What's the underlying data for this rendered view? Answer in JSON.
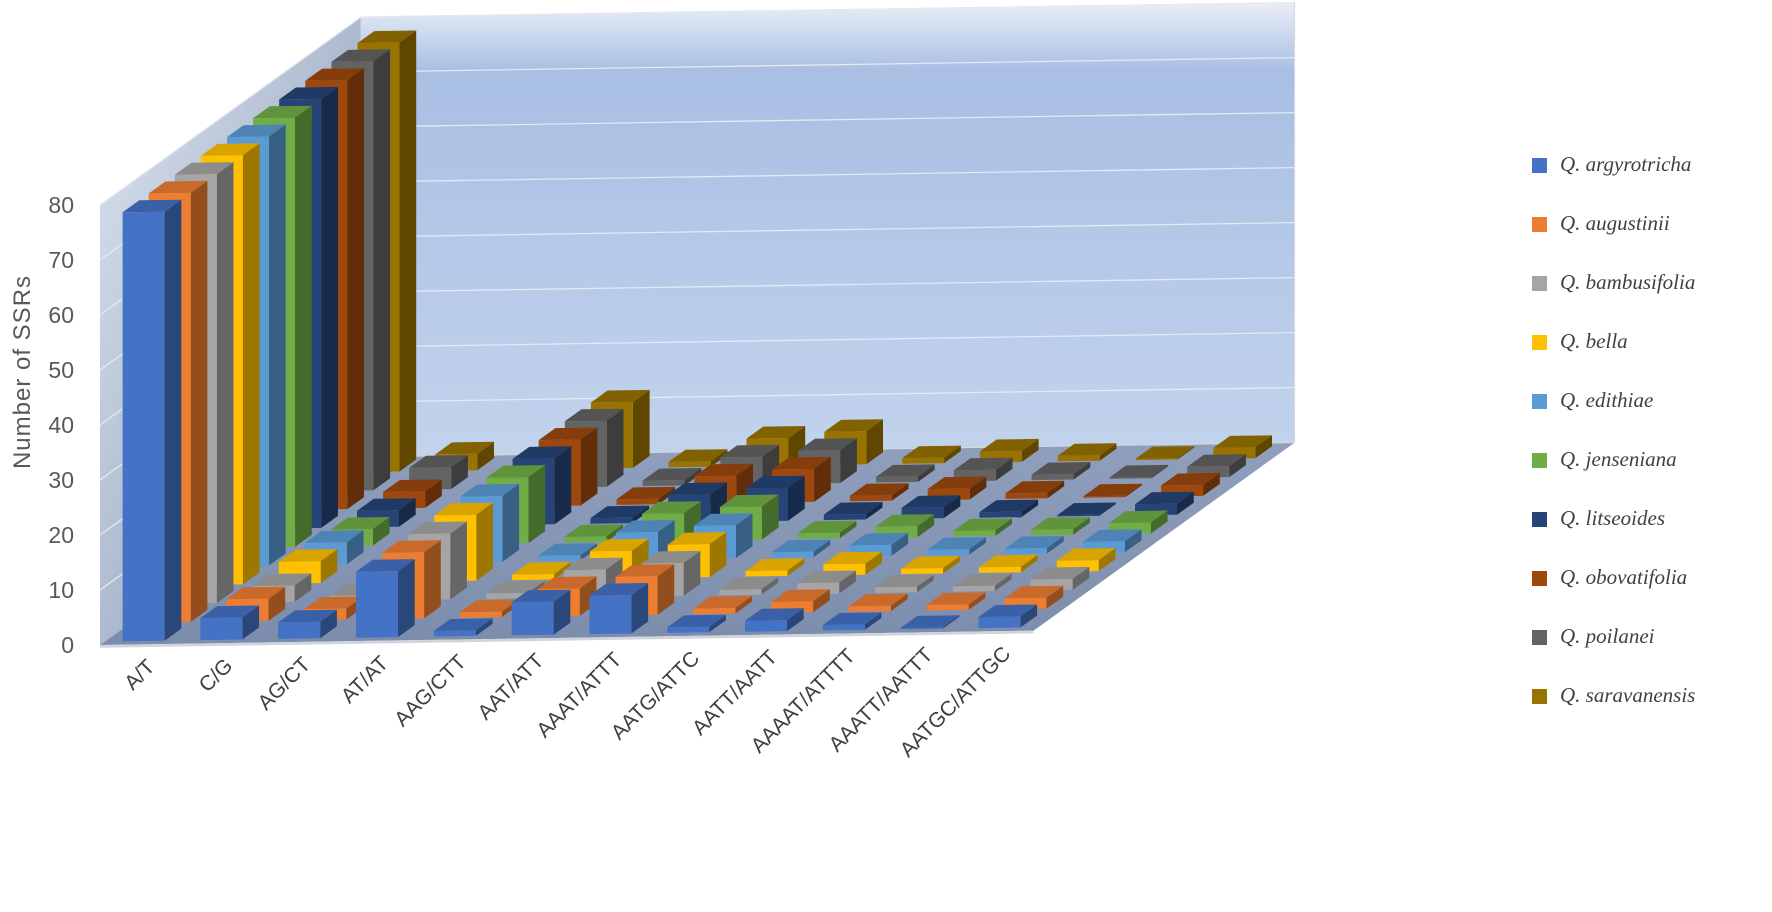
{
  "chart_data": {
    "type": "bar",
    "chart_style": "3d-clustered-column",
    "ylabel": "Number of SSRs",
    "ylim": [
      0,
      80
    ],
    "yticks": [
      0,
      10,
      20,
      30,
      40,
      50,
      60,
      70,
      80
    ],
    "grid": true,
    "legend_position": "right",
    "categories": [
      "A/T",
      "C/G",
      "AG/CT",
      "AT/AT",
      "AAG/CTT",
      "AAT/ATT",
      "AAAT/ATTT",
      "AATG/ATTC",
      "AATT/AATT",
      "AAAAT/ATTTT",
      "AAATT/AATTT",
      "AATGC/ATTGC"
    ],
    "series": [
      {
        "name": "Q. argyrotricha",
        "color": "#4472C4",
        "values": [
          78,
          4,
          3,
          12,
          1,
          6,
          7,
          1,
          2,
          1,
          0,
          2
        ]
      },
      {
        "name": "Q. augustinii",
        "color": "#ED7D31",
        "values": [
          78,
          4,
          2,
          12,
          1,
          5,
          7,
          1,
          2,
          1,
          1,
          2
        ]
      },
      {
        "name": "Q. bambusifolia",
        "color": "#A5A5A5",
        "values": [
          78,
          3,
          1,
          12,
          1,
          5,
          6,
          1,
          2,
          1,
          1,
          2
        ]
      },
      {
        "name": "Q. bella",
        "color": "#FFC000",
        "values": [
          78,
          4,
          1,
          12,
          1,
          5,
          6,
          1,
          2,
          1,
          1,
          2
        ]
      },
      {
        "name": "Q. edithiae",
        "color": "#5B9BD5",
        "values": [
          78,
          4,
          1,
          12,
          1,
          5,
          6,
          1,
          2,
          1,
          1,
          2
        ]
      },
      {
        "name": "Q. jenseniana",
        "color": "#70AD47",
        "values": [
          78,
          3,
          1,
          12,
          1,
          5,
          6,
          1,
          2,
          1,
          1,
          2
        ]
      },
      {
        "name": "Q. litseoides",
        "color": "#264478",
        "values": [
          78,
          3,
          1,
          12,
          1,
          5,
          6,
          1,
          2,
          1,
          0,
          2
        ]
      },
      {
        "name": "Q. obovatifolia",
        "color": "#9E480E",
        "values": [
          78,
          3,
          1,
          12,
          1,
          5,
          6,
          1,
          2,
          1,
          0,
          2
        ]
      },
      {
        "name": "Q. poilanei",
        "color": "#636363",
        "values": [
          78,
          4,
          1,
          12,
          1,
          5,
          6,
          1,
          2,
          1,
          0,
          2
        ]
      },
      {
        "name": "Q. saravanensis",
        "color": "#997300",
        "values": [
          78,
          3,
          1,
          12,
          1,
          5,
          6,
          1,
          2,
          1,
          0,
          2
        ]
      }
    ]
  }
}
